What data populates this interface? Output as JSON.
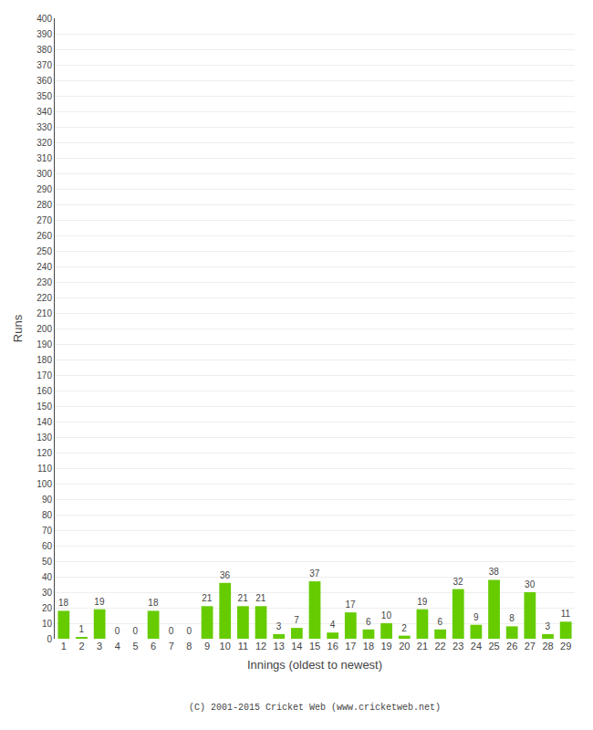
{
  "chart_data": {
    "type": "bar",
    "xlabel": "Innings (oldest to newest)",
    "ylabel": "Runs",
    "categories": [
      "1",
      "2",
      "3",
      "4",
      "5",
      "6",
      "7",
      "8",
      "9",
      "10",
      "11",
      "12",
      "13",
      "14",
      "15",
      "16",
      "17",
      "18",
      "19",
      "20",
      "21",
      "22",
      "23",
      "24",
      "25",
      "26",
      "27",
      "28",
      "29"
    ],
    "values": [
      18,
      1,
      19,
      0,
      0,
      18,
      0,
      0,
      21,
      36,
      21,
      21,
      3,
      7,
      37,
      4,
      17,
      6,
      10,
      2,
      19,
      6,
      32,
      9,
      38,
      8,
      30,
      3,
      11
    ],
    "color": "#66cc00",
    "ylim": [
      0,
      400
    ],
    "yticks": [
      0,
      10,
      20,
      30,
      40,
      50,
      60,
      70,
      80,
      90,
      100,
      110,
      120,
      130,
      140,
      150,
      160,
      170,
      180,
      190,
      200,
      210,
      220,
      230,
      240,
      250,
      260,
      270,
      280,
      290,
      300,
      310,
      320,
      330,
      340,
      350,
      360,
      370,
      380,
      390,
      400
    ],
    "grid": true,
    "data_labels": true,
    "annotations": [
      "(C) 2001-2015 Cricket Web (www.cricketweb.net)"
    ]
  }
}
